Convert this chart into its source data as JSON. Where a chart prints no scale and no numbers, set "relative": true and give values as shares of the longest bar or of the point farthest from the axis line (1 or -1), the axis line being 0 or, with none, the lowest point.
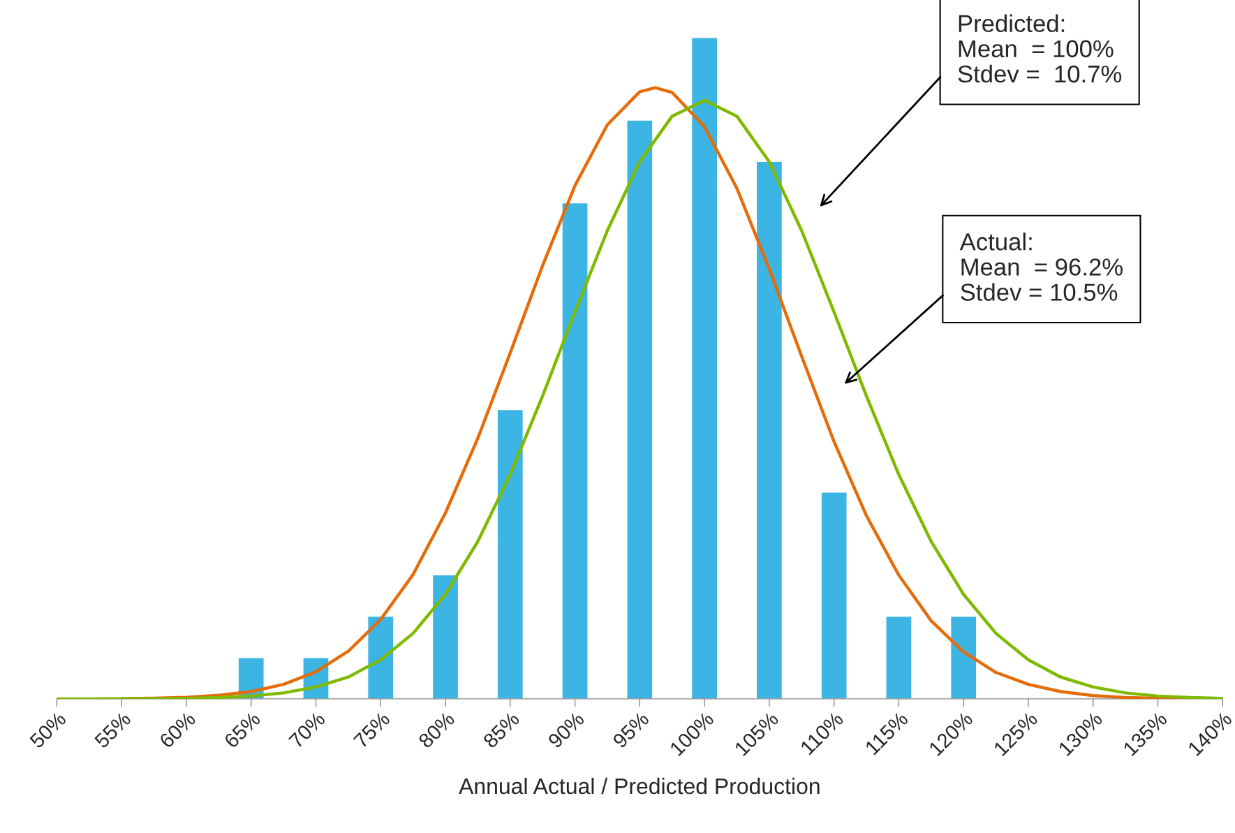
{
  "chart_data": {
    "type": "bar",
    "relative": true,
    "xlabel": "Annual Actual / Predicted Production",
    "xlim": [
      50,
      140
    ],
    "xticks": [
      {
        "value": 50,
        "label": "50%"
      },
      {
        "value": 55,
        "label": "55%"
      },
      {
        "value": 60,
        "label": "60%"
      },
      {
        "value": 65,
        "label": "65%"
      },
      {
        "value": 70,
        "label": "70%"
      },
      {
        "value": 75,
        "label": "75%"
      },
      {
        "value": 80,
        "label": "80%"
      },
      {
        "value": 85,
        "label": "85%"
      },
      {
        "value": 90,
        "label": "90%"
      },
      {
        "value": 95,
        "label": "95%"
      },
      {
        "value": 100,
        "label": "100%"
      },
      {
        "value": 105,
        "label": "105%"
      },
      {
        "value": 110,
        "label": "110%"
      },
      {
        "value": 115,
        "label": "115%"
      },
      {
        "value": 120,
        "label": "120%"
      },
      {
        "value": 125,
        "label": "125%"
      },
      {
        "value": 130,
        "label": "130%"
      },
      {
        "value": 135,
        "label": "135%"
      },
      {
        "value": 140,
        "label": "140%"
      }
    ],
    "grid": false,
    "legend": false,
    "series": [
      {
        "color": "#3cb4e4",
        "x": [
          65,
          70,
          75,
          80,
          85,
          90,
          95,
          100,
          105,
          110,
          115,
          120
        ],
        "values": [
          0.0625,
          0.0625,
          0.125,
          0.1875,
          0.4375,
          0.75,
          0.875,
          1,
          0.8125,
          0.3125,
          0.125,
          0.125
        ]
      },
      {
        "type": "line",
        "color": "#e46c0a",
        "x": [
          55,
          57.5,
          60,
          62.5,
          65,
          67.5,
          70,
          72.5,
          75,
          77.5,
          80,
          82.5,
          85,
          87.5,
          90,
          92.5,
          95,
          96.2,
          97.5,
          100,
          102.5,
          105,
          107.5,
          110,
          112.5,
          115,
          117.5,
          120,
          122.5,
          125,
          127.5,
          130,
          132.5,
          135,
          137.5,
          140
        ],
        "values": [
          0.0004,
          0.001,
          0.0024,
          0.0054,
          0.011,
          0.022,
          0.041,
          0.072,
          0.12,
          0.188,
          0.281,
          0.394,
          0.523,
          0.655,
          0.776,
          0.868,
          0.918,
          0.924,
          0.917,
          0.865,
          0.772,
          0.65,
          0.518,
          0.389,
          0.277,
          0.187,
          0.118,
          0.071,
          0.04,
          0.022,
          0.011,
          0.005,
          0.002,
          0.001,
          0.0004,
          0.0002
        ]
      },
      {
        "type": "line",
        "color": "#7fba00",
        "x": [
          50,
          52.5,
          55,
          57.5,
          60,
          62.5,
          65,
          67.5,
          70,
          72.5,
          75,
          77.5,
          80,
          82.5,
          85,
          87.5,
          90,
          92.5,
          95,
          97.5,
          100,
          102.5,
          105,
          107.5,
          110,
          112.5,
          115,
          117.5,
          120,
          122.5,
          125,
          127.5,
          130,
          132.5,
          135,
          137.5,
          140
        ],
        "values": [
          0,
          0,
          0.0001,
          0.0003,
          0.0008,
          0.002,
          0.0043,
          0.009,
          0.018,
          0.033,
          0.059,
          0.099,
          0.158,
          0.238,
          0.339,
          0.458,
          0.585,
          0.708,
          0.812,
          0.881,
          0.905,
          0.881,
          0.812,
          0.708,
          0.585,
          0.458,
          0.339,
          0.238,
          0.158,
          0.099,
          0.059,
          0.033,
          0.018,
          0.009,
          0.0043,
          0.002,
          0.0008
        ]
      }
    ],
    "annotations": [
      "Predicted:\nMean  = 100%\nStdev =  10.7%",
      "Actual:\nMean  = 96.2%\nStdev = 10.5%"
    ]
  }
}
